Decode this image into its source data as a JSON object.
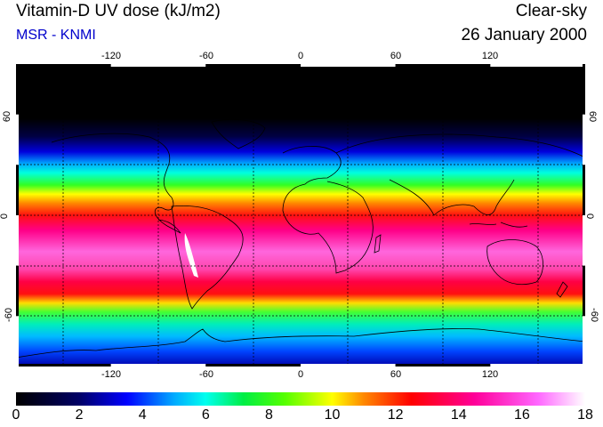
{
  "title": "Vitamin-D UV dose (kJ/m2)",
  "credit": "MSR - KNMI",
  "sky_condition": "Clear-sky",
  "date": "26 January 2000",
  "longitude_ticks": [
    "-120",
    "-60",
    "0",
    "60",
    "120"
  ],
  "latitude_ticks": [
    "60",
    "0",
    "-60"
  ],
  "colorbar": {
    "ticks": [
      "0",
      "2",
      "4",
      "6",
      "8",
      "10",
      "12",
      "14",
      "16",
      "18"
    ],
    "min": 0,
    "max": 18,
    "stops": [
      {
        "value": 0,
        "color": "#000000"
      },
      {
        "value": 2,
        "color": "#000066"
      },
      {
        "value": 3.5,
        "color": "#0000ff"
      },
      {
        "value": 5,
        "color": "#00aaff"
      },
      {
        "value": 6,
        "color": "#00ffee"
      },
      {
        "value": 7.2,
        "color": "#00ee44"
      },
      {
        "value": 8.5,
        "color": "#55ff00"
      },
      {
        "value": 10,
        "color": "#ffff00"
      },
      {
        "value": 11,
        "color": "#ff8800"
      },
      {
        "value": 12.5,
        "color": "#ff0000"
      },
      {
        "value": 14.5,
        "color": "#ff0099"
      },
      {
        "value": 16.5,
        "color": "#ff66ff"
      },
      {
        "value": 18,
        "color": "#ffffff"
      }
    ]
  }
}
